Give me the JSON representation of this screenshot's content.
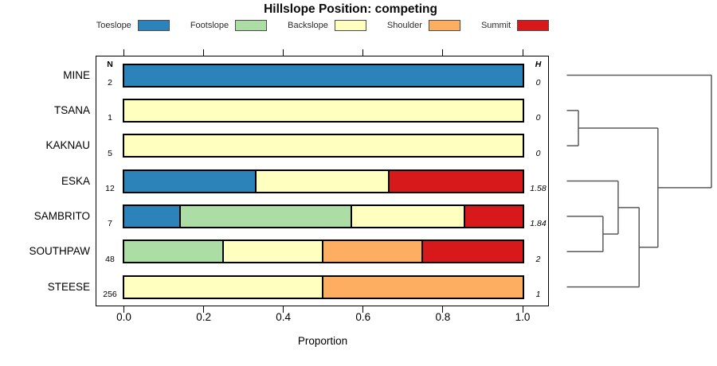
{
  "chart_data": {
    "type": "bar",
    "orientation": "horizontal",
    "stacked": true,
    "title": "Hillslope Position: competing",
    "xlabel": "Proportion",
    "xlim": [
      0,
      1
    ],
    "xticks": [
      0,
      0.2,
      0.4,
      0.6,
      0.8,
      1.0
    ],
    "xtick_labels": [
      "0.0",
      "0.2",
      "0.4",
      "0.6",
      "0.8",
      "1.0"
    ],
    "grid": false,
    "n_header": "N",
    "h_header": "H",
    "legend": {
      "position": "top",
      "entries": [
        {
          "label": "Toeslope",
          "color": "#2B83BA"
        },
        {
          "label": "Footslope",
          "color": "#ABDDA4"
        },
        {
          "label": "Backslope",
          "color": "#FFFFBF"
        },
        {
          "label": "Shoulder",
          "color": "#FDAE61"
        },
        {
          "label": "Summit",
          "color": "#D7191C"
        }
      ]
    },
    "rows": [
      {
        "label": "MINE",
        "n": "2",
        "h": "0",
        "segments": [
          [
            "Toeslope",
            1.0
          ]
        ]
      },
      {
        "label": "TSANA",
        "n": "1",
        "h": "0",
        "segments": [
          [
            "Backslope",
            1.0
          ]
        ]
      },
      {
        "label": "KAKNAU",
        "n": "5",
        "h": "0",
        "segments": [
          [
            "Backslope",
            1.0
          ]
        ]
      },
      {
        "label": "ESKA",
        "n": "12",
        "h": "1.58",
        "segments": [
          [
            "Toeslope",
            0.333
          ],
          [
            "Backslope",
            0.333
          ],
          [
            "Summit",
            0.334
          ]
        ]
      },
      {
        "label": "SAMBRITO",
        "n": "7",
        "h": "1.84",
        "segments": [
          [
            "Toeslope",
            0.143
          ],
          [
            "Footslope",
            0.429
          ],
          [
            "Backslope",
            0.285
          ],
          [
            "Summit",
            0.143
          ]
        ]
      },
      {
        "label": "SOUTHPAW",
        "n": "48",
        "h": "2",
        "segments": [
          [
            "Footslope",
            0.25
          ],
          [
            "Backslope",
            0.25
          ],
          [
            "Shoulder",
            0.25
          ],
          [
            "Summit",
            0.25
          ]
        ]
      },
      {
        "label": "STEESE",
        "n": "256",
        "h": "1",
        "segments": [
          [
            "Backslope",
            0.5
          ],
          [
            "Shoulder",
            0.5
          ]
        ]
      }
    ],
    "dendrogram": {
      "position": "right",
      "merges": [
        {
          "id": "m1",
          "children": [
            "TSANA",
            "KAKNAU"
          ],
          "height": 0.08
        },
        {
          "id": "m2",
          "children": [
            "SAMBRITO",
            "SOUTHPAW"
          ],
          "height": 0.25
        },
        {
          "id": "m3",
          "children": [
            "ESKA",
            "m2"
          ],
          "height": 0.355
        },
        {
          "id": "m4",
          "children": [
            "m3",
            "STEESE"
          ],
          "height": 0.5
        },
        {
          "id": "m5",
          "children": [
            "m1",
            "m4"
          ],
          "height": 0.63
        },
        {
          "id": "m6",
          "children": [
            "MINE",
            "m5"
          ],
          "height": 1.0
        }
      ]
    }
  }
}
